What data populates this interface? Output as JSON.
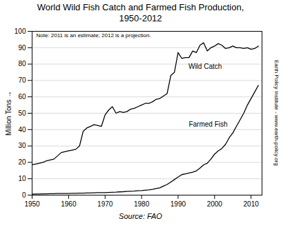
{
  "chart_data": {
    "type": "line",
    "title": "World Wild Fish Catch and Farmed Fish Production,\n1950-2012",
    "ylabel": "Million Tons",
    "note": "Note: 2011 is an estimate; 2012 is a projection.",
    "source": "Source: FAO",
    "credit": "Earth Policy Institute - www.earth-policy.org",
    "x": [
      1950,
      1951,
      1952,
      1953,
      1954,
      1955,
      1956,
      1957,
      1958,
      1959,
      1960,
      1961,
      1962,
      1963,
      1964,
      1965,
      1966,
      1967,
      1968,
      1969,
      1970,
      1971,
      1972,
      1973,
      1974,
      1975,
      1976,
      1977,
      1978,
      1979,
      1980,
      1981,
      1982,
      1983,
      1984,
      1985,
      1986,
      1987,
      1988,
      1989,
      1990,
      1991,
      1992,
      1993,
      1994,
      1995,
      1996,
      1997,
      1998,
      1999,
      2000,
      2001,
      2002,
      2003,
      2004,
      2005,
      2006,
      2007,
      2008,
      2009,
      2010,
      2011,
      2012
    ],
    "series": [
      {
        "name": "Wild Catch",
        "color": "#000000",
        "values": [
          18.5,
          19.0,
          19.5,
          20.0,
          21.0,
          21.5,
          22.0,
          24.0,
          26.0,
          26.5,
          27.0,
          27.5,
          28.0,
          30.0,
          39.0,
          41.0,
          42.0,
          43.0,
          42.5,
          42.0,
          49.0,
          52.0,
          54.0,
          50.0,
          51.0,
          50.5,
          51.0,
          52.5,
          53.0,
          54.0,
          55.0,
          56.0,
          56.0,
          57.0,
          58.5,
          59.0,
          60.5,
          62.0,
          73.0,
          75.0,
          87.0,
          83.5,
          84.0,
          84.0,
          88.0,
          87.0,
          91.5,
          93.0,
          88.0,
          90.0,
          91.0,
          92.5,
          91.5,
          89.5,
          90.0,
          91.0,
          90.0,
          90.0,
          89.5,
          90.0,
          89.0,
          89.5,
          91.0
        ]
      },
      {
        "name": "Farmed Fish",
        "color": "#000000",
        "values": [
          0.6,
          0.7,
          0.7,
          0.8,
          0.8,
          0.9,
          0.9,
          1.0,
          1.0,
          1.0,
          1.0,
          1.1,
          1.1,
          1.2,
          1.2,
          1.3,
          1.3,
          1.4,
          1.5,
          1.5,
          1.5,
          1.6,
          1.7,
          1.8,
          2.0,
          2.1,
          2.3,
          2.4,
          2.5,
          2.7,
          2.8,
          3.0,
          3.2,
          3.5,
          4.0,
          4.5,
          5.5,
          6.5,
          8.0,
          9.5,
          11.0,
          12.5,
          13.0,
          13.5,
          14.0,
          14.8,
          16.5,
          18.5,
          19.5,
          22.0,
          25.0,
          27.0,
          28.5,
          31.0,
          35.0,
          38.0,
          42.0,
          46.0,
          50.0,
          55.0,
          59.0,
          63.0,
          67.0
        ]
      }
    ],
    "xlim": [
      1950,
      2013
    ],
    "xticks": [
      1950,
      1960,
      1970,
      1980,
      1990,
      2000,
      2010
    ],
    "ylim": [
      0,
      100
    ],
    "yticks": [
      0,
      10,
      20,
      30,
      40,
      50,
      60,
      70,
      80,
      90,
      100
    ],
    "grid": true
  }
}
